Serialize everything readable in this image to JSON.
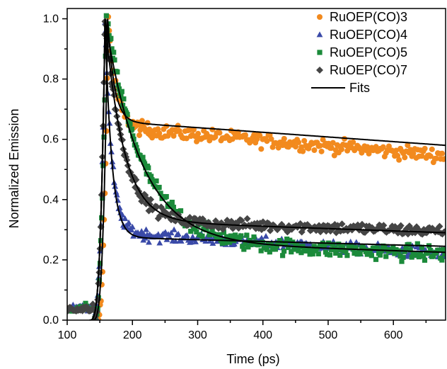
{
  "chart_data": {
    "type": "scatter",
    "xlabel": "Time (ps)",
    "ylabel": "Normalized Emission",
    "xlim": [
      100,
      680
    ],
    "ylim": [
      0.0,
      1.02
    ],
    "x_ticks": [
      100,
      200,
      300,
      400,
      500,
      600
    ],
    "y_ticks": [
      0.0,
      0.2,
      0.4,
      0.6,
      0.8,
      1.0
    ],
    "x_tick_labels": [
      "100",
      "200",
      "300",
      "400",
      "500",
      "600"
    ],
    "y_tick_labels": [
      "0.0",
      "0.2",
      "0.4",
      "0.6",
      "0.8",
      "1.0"
    ],
    "legend_position": "top-right",
    "series": [
      {
        "name": "RuOEP(CO)3",
        "marker": "circle",
        "color": "#f28a1e",
        "plateau_from": 0.64,
        "plateau_to": 0.545,
        "fast_amp": 0.36,
        "fast_tau_ps": 12,
        "rise_center_ps": 155,
        "peak_ps": 163,
        "noise": 0.022
      },
      {
        "name": "RuOEP(CO)4",
        "marker": "triangle",
        "color": "#3a4aa8",
        "plateau_from": 0.29,
        "plateau_to": 0.22,
        "fast_amp": 0.71,
        "fast_tau_ps": 10,
        "rise_center_ps": 150,
        "peak_ps": 158,
        "noise": 0.018
      },
      {
        "name": "RuOEP(CO)5",
        "marker": "square",
        "color": "#1b8a3a",
        "plateau_from": 0.26,
        "plateau_to": 0.22,
        "fast_amp": 0.74,
        "fast_tau_ps": 55,
        "rise_center_ps": 150,
        "peak_ps": 160,
        "noise": 0.025
      },
      {
        "name": "RuOEP(CO)7",
        "marker": "diamond",
        "color": "#454545",
        "plateau_from": 0.33,
        "plateau_to": 0.295,
        "fast_amp": 0.67,
        "fast_tau_ps": 28,
        "rise_center_ps": 150,
        "peak_ps": 158,
        "noise": 0.018
      }
    ],
    "fits": {
      "name": "Fits",
      "color": "#000000",
      "curves": [
        {
          "peak_ps": 162,
          "rise_ps": 160,
          "plateau_from": 0.66,
          "plateau_to": 0.58,
          "fast_amp": 0.34,
          "fast_tau_ps": 10
        },
        {
          "peak_ps": 158,
          "rise_ps": 156,
          "plateau_from": 0.275,
          "plateau_to": 0.245,
          "fast_amp": 0.725,
          "fast_tau_ps": 10
        },
        {
          "peak_ps": 158,
          "rise_ps": 156,
          "plateau_from": 0.26,
          "plateau_to": 0.225,
          "fast_amp": 0.74,
          "fast_tau_ps": 55
        },
        {
          "peak_ps": 158,
          "rise_ps": 156,
          "plateau_from": 0.33,
          "plateau_to": 0.29,
          "fast_amp": 0.67,
          "fast_tau_ps": 28
        }
      ]
    }
  }
}
